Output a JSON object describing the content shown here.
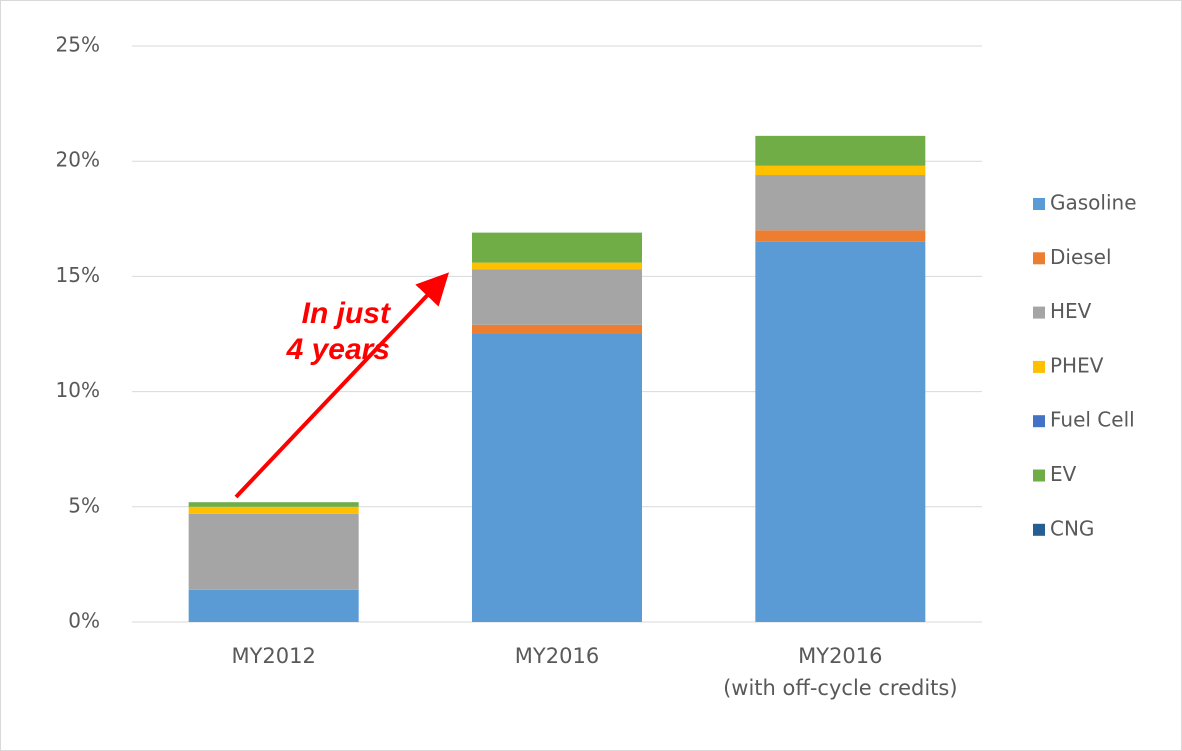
{
  "chart_data": {
    "type": "stacked_bar",
    "categories": [
      "MY2012",
      "MY2016",
      "MY2016\n(with off-cycle credits)"
    ],
    "series": [
      {
        "name": "Gasoline",
        "color": "#5b9bd5",
        "values": [
          1.4,
          12.5,
          16.5
        ]
      },
      {
        "name": "Diesel",
        "color": "#ed7d31",
        "values": [
          0,
          0.4,
          0.5
        ]
      },
      {
        "name": "HEV",
        "color": "#a5a5a5",
        "values": [
          3.3,
          2.4,
          2.4
        ]
      },
      {
        "name": "PHEV",
        "color": "#ffc000",
        "values": [
          0.3,
          0.3,
          0.4
        ]
      },
      {
        "name": "Fuel Cell",
        "color": "#4472c4",
        "values": [
          0,
          0,
          0
        ]
      },
      {
        "name": "EV",
        "color": "#70ad47",
        "values": [
          0.2,
          1.3,
          1.3
        ]
      },
      {
        "name": "CNG",
        "color": "#255e91",
        "values": [
          0,
          0,
          0
        ]
      }
    ],
    "ylim": [
      0,
      25
    ],
    "yticks": [
      {
        "value": 0,
        "label": "0%"
      },
      {
        "value": 5,
        "label": "5%"
      },
      {
        "value": 10,
        "label": "10%"
      },
      {
        "value": 15,
        "label": "15%"
      },
      {
        "value": 20,
        "label": "20%"
      },
      {
        "value": 25,
        "label": "25%"
      }
    ],
    "grid": true,
    "legend": "right",
    "annotation": "In just\n4 years"
  }
}
